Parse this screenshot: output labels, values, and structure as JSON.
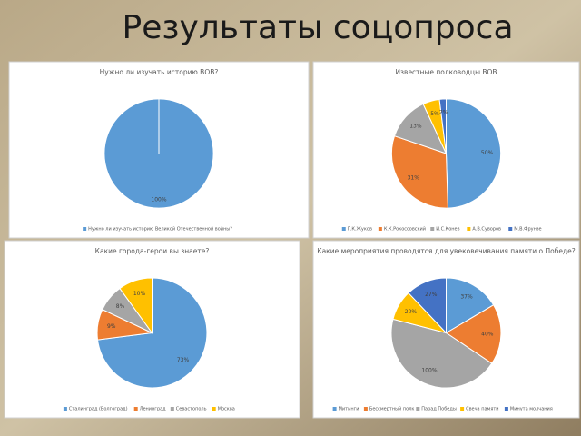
{
  "slide_title": "Результаты соцопроса",
  "chart_data": [
    {
      "type": "pie",
      "title": "Нужно ли изучать историю ВОВ?",
      "categories": [
        "Нужно ли изучать историю Великой Отечественной войны?"
      ],
      "values": [
        100
      ],
      "value_labels": [
        "100%"
      ],
      "colors": [
        "#5b9bd5"
      ]
    },
    {
      "type": "pie",
      "title": "Известные полководцы ВОВ",
      "categories": [
        "Г.К.Жуков",
        "К.К.Рокоссовский",
        "И.С.Конев",
        "А.В.Суворов",
        "М.В.Фрунзе"
      ],
      "values": [
        50,
        31,
        13,
        5,
        2
      ],
      "value_labels": [
        "50%",
        "31%",
        "13%",
        "5%",
        "2%"
      ],
      "colors": [
        "#5b9bd5",
        "#ed7d31",
        "#a5a5a5",
        "#ffc000",
        "#4472c4"
      ]
    },
    {
      "type": "pie",
      "title": "Какие города-герои вы знаете?",
      "categories": [
        "Сталинград (Волгоград)",
        "Ленинград",
        "Севастополь",
        "Москва"
      ],
      "values": [
        73,
        9,
        8,
        10
      ],
      "value_labels": [
        "73%",
        "9%",
        "8%",
        "10%"
      ],
      "colors": [
        "#5b9bd5",
        "#ed7d31",
        "#a5a5a5",
        "#ffc000"
      ]
    },
    {
      "type": "pie",
      "title": "Какие мероприятия проводятся для увековечивания памяти о Победе?",
      "categories": [
        "Митинги",
        "Бессмертный полк",
        "Парад Победы",
        "Свеча памяти",
        "Минута молчания"
      ],
      "values": [
        37,
        40,
        100,
        20,
        27
      ],
      "value_labels": [
        "37%",
        "40%",
        "100%",
        "20%",
        "27%"
      ],
      "colors": [
        "#5b9bd5",
        "#ed7d31",
        "#a5a5a5",
        "#ffc000",
        "#4472c4"
      ]
    }
  ]
}
